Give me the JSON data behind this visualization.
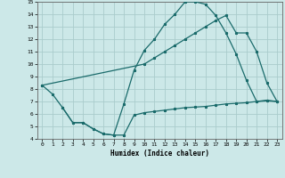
{
  "xlabel": "Humidex (Indice chaleur)",
  "bg_color": "#cce8e8",
  "grid_color": "#aacccc",
  "line_color": "#1a6b6b",
  "xlim": [
    -0.5,
    23.5
  ],
  "ylim": [
    4,
    15
  ],
  "xticks": [
    0,
    1,
    2,
    3,
    4,
    5,
    6,
    7,
    8,
    9,
    10,
    11,
    12,
    13,
    14,
    15,
    16,
    17,
    18,
    19,
    20,
    21,
    22,
    23
  ],
  "yticks": [
    4,
    5,
    6,
    7,
    8,
    9,
    10,
    11,
    12,
    13,
    14,
    15
  ],
  "curve1_x": [
    0,
    1,
    2,
    3,
    4,
    5,
    6,
    7,
    8,
    9,
    10,
    11,
    12,
    13,
    14,
    15,
    16,
    17,
    18,
    19,
    20,
    21,
    22,
    23
  ],
  "curve1_y": [
    8.3,
    7.6,
    6.5,
    5.3,
    5.3,
    4.8,
    4.4,
    4.3,
    6.8,
    9.5,
    11.1,
    12.0,
    13.2,
    14.0,
    15.0,
    15.0,
    14.8,
    13.9,
    12.5,
    10.8,
    8.7,
    7.0,
    7.1,
    7.0
  ],
  "curve2_x": [
    0,
    10,
    11,
    12,
    13,
    14,
    15,
    16,
    17,
    18,
    19,
    20,
    21,
    22,
    23
  ],
  "curve2_y": [
    8.3,
    10.0,
    10.5,
    11.0,
    11.5,
    12.0,
    12.5,
    13.0,
    13.5,
    13.9,
    12.5,
    12.5,
    11.0,
    8.5,
    7.0
  ],
  "curve3_x": [
    2,
    3,
    4,
    5,
    6,
    7,
    8,
    9,
    10,
    11,
    12,
    13,
    14,
    15,
    16,
    17,
    18,
    19,
    20,
    21,
    22,
    23
  ],
  "curve3_y": [
    6.5,
    5.3,
    5.3,
    4.8,
    4.4,
    4.3,
    4.3,
    5.9,
    6.1,
    6.2,
    6.3,
    6.4,
    6.5,
    6.55,
    6.6,
    6.7,
    6.8,
    6.85,
    6.9,
    7.0,
    7.05,
    7.0
  ]
}
